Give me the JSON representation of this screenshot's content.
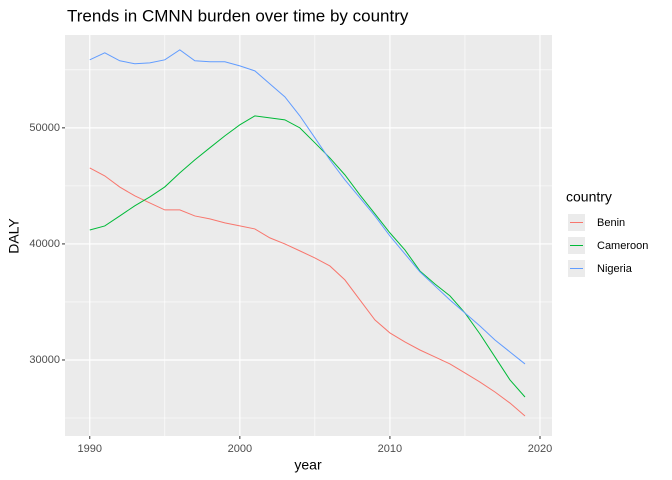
{
  "chart_data": {
    "type": "line",
    "title": "Trends in CMNN burden over time by country",
    "x_label": "year",
    "y_label": "DALY",
    "legend_title": "country",
    "x": [
      1990,
      1991,
      1992,
      1993,
      1994,
      1995,
      1996,
      1997,
      1998,
      1999,
      2000,
      2001,
      2002,
      2003,
      2004,
      2005,
      2006,
      2007,
      2008,
      2009,
      2010,
      2011,
      2012,
      2013,
      2014,
      2015,
      2016,
      2017,
      2018,
      2019
    ],
    "series": [
      {
        "name": "Benin",
        "color": "#F8766D",
        "values": [
          46550,
          45860,
          44900,
          44140,
          43530,
          42930,
          42930,
          42410,
          42160,
          41810,
          41550,
          41290,
          40520,
          40000,
          39400,
          38790,
          38100,
          36900,
          35170,
          33450,
          32330,
          31550,
          30860,
          30260,
          29660,
          28880,
          28100,
          27240,
          26290,
          25170
        ]
      },
      {
        "name": "Cameroon",
        "color": "#00BA38",
        "values": [
          41200,
          41550,
          42410,
          43280,
          44050,
          44910,
          46120,
          47240,
          48280,
          49310,
          50260,
          51030,
          50860,
          50690,
          50000,
          48710,
          47410,
          45950,
          44220,
          42590,
          40950,
          39480,
          37670,
          36550,
          35520,
          34050,
          32240,
          30260,
          28280,
          26810
        ]
      },
      {
        "name": "Nigeria",
        "color": "#619CFF",
        "values": [
          55860,
          56470,
          55780,
          55520,
          55600,
          55860,
          56720,
          55780,
          55690,
          55690,
          55340,
          54910,
          53790,
          52670,
          51030,
          49140,
          47240,
          45520,
          43970,
          42410,
          40690,
          39140,
          37590,
          36380,
          35170,
          34050,
          32930,
          31720,
          30690,
          29660
        ]
      }
    ],
    "xlim": [
      1988.35,
      2020.8
    ],
    "ylim": [
      23450,
      58000
    ],
    "xticks": [
      1990,
      2000,
      2010,
      2020
    ],
    "yticks": [
      30000,
      40000,
      50000
    ],
    "x_minor_ticks": [
      1995,
      2005,
      2015
    ],
    "y_minor_ticks": [
      25000,
      35000,
      45000,
      55000
    ],
    "grid": true
  }
}
